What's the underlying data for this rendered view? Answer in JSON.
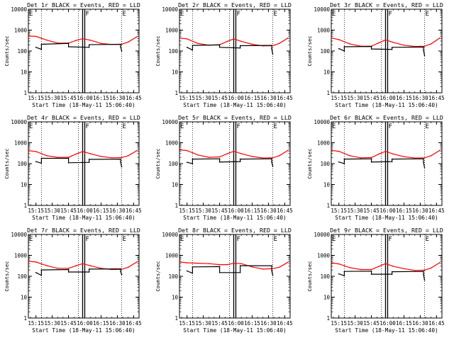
{
  "chart_data": [
    {
      "type": "line",
      "title": "Det 1r BLACK = Events, RED = LLD",
      "xlabel": "Start Time (18-May-11 15:06:40)",
      "ylabel": "Counts/sec",
      "yscale": "log",
      "ylim": [
        1,
        10000
      ],
      "xlim": [
        "15:08",
        "16:50"
      ],
      "xticks": [
        "15:15",
        "15:30",
        "15:45",
        "16:00",
        "16:15",
        "16:30",
        "16:45"
      ],
      "yticks": [
        "1",
        "10",
        "100",
        "1000",
        "10000"
      ],
      "markers": [
        {
          "label": "E",
          "time": "15:08"
        },
        {
          "label": "F",
          "time": "15:58"
        },
        {
          "label": "E",
          "time": "16:34"
        }
      ],
      "series": [
        {
          "color": "#ff0000",
          "x": [
            "15:08",
            "15:15",
            "15:25",
            "15:35",
            "15:45",
            "15:52",
            "15:58",
            "16:05",
            "16:15",
            "16:25",
            "16:34",
            "16:40",
            "16:48"
          ],
          "values": [
            520,
            500,
            330,
            240,
            240,
            320,
            390,
            330,
            230,
            205,
            210,
            270,
            480
          ]
        },
        {
          "color": "#000000",
          "x": [
            "15:15",
            "15:20",
            "15:20",
            "15:45",
            "15:45",
            "16:04",
            "16:04",
            "16:33",
            "16:33",
            "16:34"
          ],
          "values": [
            150,
            120,
            210,
            230,
            160,
            150,
            200,
            210,
            160,
            100
          ]
        }
      ]
    },
    {
      "type": "line",
      "title": "Det 2r BLACK = Events, RED = LLD",
      "xlabel": "Start Time (18-May-11 15:06:40)",
      "ylabel": "Counts/sec",
      "yscale": "log",
      "ylim": [
        1,
        10000
      ],
      "xlim": [
        "15:08",
        "16:50"
      ],
      "xticks": [
        "15:15",
        "15:30",
        "15:45",
        "16:00",
        "16:15",
        "16:30",
        "16:45"
      ],
      "yticks": [
        "1",
        "10",
        "100",
        "1000",
        "10000"
      ],
      "markers": [
        {
          "label": "E",
          "time": "15:08"
        },
        {
          "label": "F",
          "time": "15:58"
        },
        {
          "label": "E",
          "time": "16:34"
        }
      ],
      "series": [
        {
          "color": "#ff0000",
          "x": [
            "15:08",
            "15:15",
            "15:25",
            "15:35",
            "15:45",
            "15:52",
            "15:58",
            "16:05",
            "16:15",
            "16:25",
            "16:34",
            "16:40",
            "16:48"
          ],
          "values": [
            420,
            380,
            230,
            190,
            200,
            290,
            380,
            290,
            210,
            175,
            180,
            230,
            420
          ]
        },
        {
          "color": "#000000",
          "x": [
            "15:15",
            "15:20",
            "15:20",
            "15:45",
            "15:45",
            "16:04",
            "16:04",
            "16:33",
            "16:33",
            "16:34"
          ],
          "values": [
            150,
            110,
            185,
            195,
            150,
            140,
            180,
            185,
            130,
            70
          ]
        }
      ]
    },
    {
      "type": "line",
      "title": "Det 3r BLACK = Events, RED = LLD",
      "xlabel": "Start Time (18-May-11 15:06:40)",
      "ylabel": "Counts/sec",
      "yscale": "log",
      "ylim": [
        1,
        10000
      ],
      "xlim": [
        "15:08",
        "16:50"
      ],
      "xticks": [
        "15:15",
        "15:30",
        "15:45",
        "16:00",
        "16:15",
        "16:30",
        "16:45"
      ],
      "yticks": [
        "1",
        "10",
        "100",
        "1000",
        "10000"
      ],
      "markers": [
        {
          "label": "E",
          "time": "15:08"
        },
        {
          "label": "F",
          "time": "15:58"
        },
        {
          "label": "E",
          "time": "16:34"
        }
      ],
      "series": [
        {
          "color": "#ff0000",
          "x": [
            "15:08",
            "15:15",
            "15:25",
            "15:35",
            "15:45",
            "15:52",
            "15:58",
            "16:05",
            "16:15",
            "16:25",
            "16:34",
            "16:40",
            "16:48"
          ],
          "values": [
            420,
            350,
            220,
            170,
            170,
            250,
            340,
            260,
            190,
            165,
            170,
            220,
            420
          ]
        },
        {
          "color": "#000000",
          "x": [
            "15:15",
            "15:20",
            "15:20",
            "15:45",
            "15:45",
            "16:04",
            "16:04",
            "16:33",
            "16:33",
            "16:34"
          ],
          "values": [
            130,
            100,
            160,
            165,
            125,
            120,
            150,
            155,
            110,
            60
          ]
        }
      ]
    },
    {
      "type": "line",
      "title": "Det 4r BLACK = Events, RED = LLD",
      "xlabel": "Start Time (18-May-11 15:06:40)",
      "ylabel": "Counts/sec",
      "yscale": "log",
      "ylim": [
        1,
        10000
      ],
      "xlim": [
        "15:08",
        "16:50"
      ],
      "xticks": [
        "15:15",
        "15:30",
        "15:45",
        "16:00",
        "16:15",
        "16:30",
        "16:45"
      ],
      "yticks": [
        "1",
        "10",
        "100",
        "1000",
        "10000"
      ],
      "markers": [
        {
          "label": "E",
          "time": "15:08"
        },
        {
          "label": "F",
          "time": "15:58"
        },
        {
          "label": "E",
          "time": "16:34"
        }
      ],
      "series": [
        {
          "color": "#ff0000",
          "x": [
            "15:08",
            "15:15",
            "15:25",
            "15:35",
            "15:45",
            "15:52",
            "15:58",
            "16:05",
            "16:15",
            "16:25",
            "16:34",
            "16:40",
            "16:48"
          ],
          "values": [
            420,
            380,
            240,
            200,
            200,
            290,
            380,
            300,
            220,
            190,
            195,
            240,
            420
          ]
        },
        {
          "color": "#000000",
          "x": [
            "15:15",
            "15:20",
            "15:20",
            "15:45",
            "15:45",
            "16:04",
            "16:04",
            "16:33",
            "16:33",
            "16:34"
          ],
          "values": [
            125,
            105,
            180,
            180,
            110,
            115,
            160,
            165,
            120,
            70
          ]
        }
      ]
    },
    {
      "type": "line",
      "title": "Det 5r BLACK = Events, RED = LLD",
      "xlabel": "Start Time (18-May-11 15:06:40)",
      "ylabel": "Counts/sec",
      "yscale": "log",
      "ylim": [
        1,
        10000
      ],
      "xlim": [
        "15:08",
        "16:50"
      ],
      "xticks": [
        "15:15",
        "15:30",
        "15:45",
        "16:00",
        "16:15",
        "16:30",
        "16:45"
      ],
      "yticks": [
        "1",
        "10",
        "100",
        "1000",
        "10000"
      ],
      "markers": [
        {
          "label": "E",
          "time": "15:08"
        },
        {
          "label": "F",
          "time": "15:58"
        },
        {
          "label": "E",
          "time": "16:34"
        }
      ],
      "series": [
        {
          "color": "#ff0000",
          "x": [
            "15:08",
            "15:15",
            "15:25",
            "15:35",
            "15:45",
            "15:52",
            "15:58",
            "16:05",
            "16:15",
            "16:25",
            "16:34",
            "16:40",
            "16:48"
          ],
          "values": [
            460,
            420,
            260,
            200,
            210,
            300,
            390,
            300,
            220,
            185,
            190,
            240,
            430
          ]
        },
        {
          "color": "#000000",
          "x": [
            "15:15",
            "15:20",
            "15:20",
            "15:45",
            "15:45",
            "16:04",
            "16:04",
            "16:33",
            "16:33",
            "16:34"
          ],
          "values": [
            115,
            100,
            165,
            170,
            120,
            125,
            165,
            170,
            120,
            75
          ]
        }
      ]
    },
    {
      "type": "line",
      "title": "Det 6r BLACK = Events, RED = LLD",
      "xlabel": "Start Time (18-May-11 15:06:40)",
      "ylabel": "Counts/sec",
      "yscale": "log",
      "ylim": [
        1,
        10000
      ],
      "xlim": [
        "15:08",
        "16:50"
      ],
      "xticks": [
        "15:15",
        "15:30",
        "15:45",
        "16:00",
        "16:15",
        "16:30",
        "16:45"
      ],
      "yticks": [
        "1",
        "10",
        "100",
        "1000",
        "10000"
      ],
      "markers": [
        {
          "label": "E",
          "time": "15:08"
        },
        {
          "label": "F",
          "time": "15:58"
        },
        {
          "label": "E",
          "time": "16:34"
        }
      ],
      "series": [
        {
          "color": "#ff0000",
          "x": [
            "15:08",
            "15:15",
            "15:25",
            "15:35",
            "15:45",
            "15:52",
            "15:58",
            "16:05",
            "16:15",
            "16:25",
            "16:34",
            "16:40",
            "16:48"
          ],
          "values": [
            430,
            390,
            240,
            190,
            195,
            290,
            390,
            290,
            215,
            185,
            190,
            240,
            430
          ]
        },
        {
          "color": "#000000",
          "x": [
            "15:15",
            "15:20",
            "15:20",
            "15:45",
            "15:45",
            "16:04",
            "16:04",
            "16:33",
            "16:33",
            "16:34"
          ],
          "values": [
            120,
            100,
            165,
            170,
            120,
            125,
            165,
            170,
            115,
            65
          ]
        }
      ]
    },
    {
      "type": "line",
      "title": "Det 7r BLACK = Events, RED = LLD",
      "xlabel": "Start Time (18-May-11 15:06:40)",
      "ylabel": "Counts/sec",
      "yscale": "log",
      "ylim": [
        1,
        10000
      ],
      "xlim": [
        "15:08",
        "16:50"
      ],
      "xticks": [
        "15:15",
        "15:30",
        "15:45",
        "16:00",
        "16:15",
        "16:30",
        "16:45"
      ],
      "yticks": [
        "1",
        "10",
        "100",
        "1000",
        "10000"
      ],
      "markers": [
        {
          "label": "E",
          "time": "15:08"
        },
        {
          "label": "F",
          "time": "15:58"
        },
        {
          "label": "E",
          "time": "16:34"
        }
      ],
      "series": [
        {
          "color": "#ff0000",
          "x": [
            "15:08",
            "15:15",
            "15:25",
            "15:35",
            "15:45",
            "15:52",
            "15:58",
            "16:05",
            "16:15",
            "16:25",
            "16:34",
            "16:40",
            "16:48"
          ],
          "values": [
            520,
            480,
            320,
            240,
            240,
            320,
            400,
            320,
            240,
            210,
            215,
            270,
            480
          ]
        },
        {
          "color": "#000000",
          "x": [
            "15:15",
            "15:20",
            "15:20",
            "15:45",
            "15:45",
            "16:04",
            "16:04",
            "16:33",
            "16:33",
            "16:34"
          ],
          "values": [
            150,
            110,
            200,
            210,
            160,
            160,
            220,
            225,
            170,
            120
          ]
        }
      ]
    },
    {
      "type": "line",
      "title": "Det 8r BLACK = Events, RED = LLD",
      "xlabel": "Start Time (18-May-11 15:06:40)",
      "ylabel": "Counts/sec",
      "yscale": "log",
      "ylim": [
        1,
        10000
      ],
      "xlim": [
        "15:08",
        "16:50"
      ],
      "xticks": [
        "15:15",
        "15:30",
        "15:45",
        "16:00",
        "16:15",
        "16:30",
        "16:45"
      ],
      "yticks": [
        "1",
        "10",
        "100",
        "1000",
        "10000"
      ],
      "markers": [
        {
          "label": "E",
          "time": "15:08"
        },
        {
          "label": "F",
          "time": "15:58"
        },
        {
          "label": "E",
          "time": "16:34"
        }
      ],
      "series": [
        {
          "color": "#ff0000",
          "x": [
            "15:08",
            "15:15",
            "15:25",
            "15:35",
            "15:45",
            "15:52",
            "15:58",
            "16:05",
            "16:15",
            "16:25",
            "16:34",
            "16:40",
            "16:48"
          ],
          "values": [
            480,
            440,
            420,
            400,
            360,
            360,
            420,
            400,
            280,
            220,
            230,
            270,
            470
          ]
        },
        {
          "color": "#000000",
          "x": [
            "15:15",
            "15:20",
            "15:20",
            "15:45",
            "15:45",
            "16:04",
            "16:04",
            "16:33",
            "16:33",
            "16:34"
          ],
          "values": [
            180,
            140,
            280,
            290,
            150,
            150,
            320,
            320,
            190,
            110
          ]
        }
      ]
    },
    {
      "type": "line",
      "title": "Det 9r BLACK = Events, RED = LLD",
      "xlabel": "Start Time (18-May-11 15:06:40)",
      "ylabel": "Counts/sec",
      "yscale": "log",
      "ylim": [
        1,
        10000
      ],
      "xlim": [
        "15:08",
        "16:50"
      ],
      "xticks": [
        "15:15",
        "15:30",
        "15:45",
        "16:00",
        "16:15",
        "16:30",
        "16:45"
      ],
      "yticks": [
        "1",
        "10",
        "100",
        "1000",
        "10000"
      ],
      "markers": [
        {
          "label": "E",
          "time": "15:08"
        },
        {
          "label": "F",
          "time": "15:58"
        },
        {
          "label": "E",
          "time": "16:34"
        }
      ],
      "series": [
        {
          "color": "#ff0000",
          "x": [
            "15:08",
            "15:15",
            "15:25",
            "15:35",
            "15:45",
            "15:52",
            "15:58",
            "16:05",
            "16:15",
            "16:25",
            "16:34",
            "16:40",
            "16:48"
          ],
          "values": [
            440,
            390,
            260,
            210,
            210,
            300,
            400,
            300,
            230,
            190,
            195,
            250,
            450
          ]
        },
        {
          "color": "#000000",
          "x": [
            "15:15",
            "15:20",
            "15:20",
            "15:45",
            "15:45",
            "16:04",
            "16:04",
            "16:33",
            "16:33",
            "16:34"
          ],
          "values": [
            130,
            105,
            170,
            175,
            125,
            125,
            165,
            170,
            120,
            65
          ]
        }
      ]
    }
  ]
}
